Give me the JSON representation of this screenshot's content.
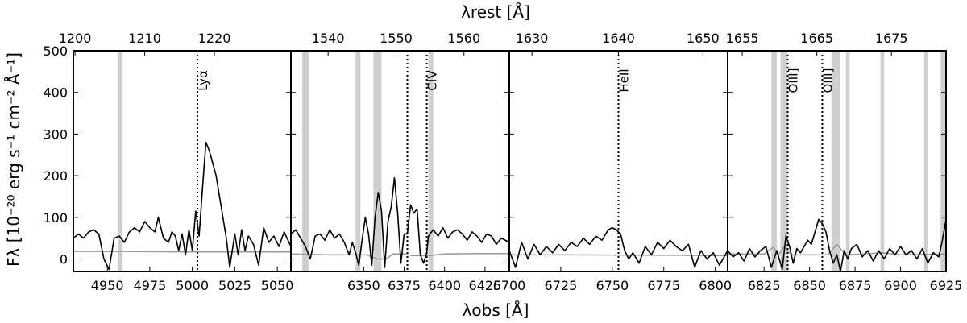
{
  "chart_data": {
    "type": "line",
    "xlabel": "λobs [Å]",
    "top_label": "λrest [Å]",
    "ylabel": "Fλ [10⁻²⁰ erg s⁻¹ cm⁻² Å⁻¹]",
    "ylim": [
      -30,
      500
    ],
    "yticks": [
      0,
      100,
      200,
      300,
      400,
      500
    ],
    "panels": [
      {
        "xlim": [
          4930,
          5058
        ],
        "xticks": [
          4950,
          4975,
          5000,
          5025,
          5050
        ],
        "top_ticks": [
          {
            "label": "1200",
            "obs": 4931
          },
          {
            "label": "1210",
            "obs": 4972
          },
          {
            "label": "1220",
            "obs": 5013
          }
        ],
        "lines": [
          {
            "label": "Lyα",
            "obs": 5003
          }
        ],
        "bands": [
          [
            4956,
            4959
          ]
        ],
        "flux": [
          [
            4930,
            50
          ],
          [
            4933,
            60
          ],
          [
            4936,
            50
          ],
          [
            4939,
            65
          ],
          [
            4942,
            70
          ],
          [
            4945,
            60
          ],
          [
            4948,
            0
          ],
          [
            4951,
            -25
          ],
          [
            4954,
            50
          ],
          [
            4957,
            55
          ],
          [
            4960,
            40
          ],
          [
            4963,
            65
          ],
          [
            4966,
            75
          ],
          [
            4969,
            65
          ],
          [
            4972,
            90
          ],
          [
            4975,
            75
          ],
          [
            4978,
            65
          ],
          [
            4980,
            100
          ],
          [
            4983,
            50
          ],
          [
            4986,
            40
          ],
          [
            4988,
            65
          ],
          [
            4990,
            55
          ],
          [
            4992,
            20
          ],
          [
            4994,
            60
          ],
          [
            4996,
            10
          ],
          [
            4998,
            70
          ],
          [
            5000,
            20
          ],
          [
            5002,
            115
          ],
          [
            5004,
            55
          ],
          [
            5006,
            170
          ],
          [
            5008,
            280
          ],
          [
            5010,
            260
          ],
          [
            5012,
            230
          ],
          [
            5014,
            200
          ],
          [
            5016,
            150
          ],
          [
            5018,
            100
          ],
          [
            5020,
            50
          ],
          [
            5022,
            -20
          ],
          [
            5025,
            60
          ],
          [
            5027,
            10
          ],
          [
            5029,
            70
          ],
          [
            5031,
            20
          ],
          [
            5033,
            55
          ],
          [
            5036,
            35
          ],
          [
            5039,
            -15
          ],
          [
            5042,
            75
          ],
          [
            5045,
            40
          ],
          [
            5048,
            55
          ],
          [
            5051,
            30
          ],
          [
            5054,
            65
          ],
          [
            5058,
            30
          ]
        ],
        "noise": [
          [
            4930,
            18
          ],
          [
            4960,
            18
          ],
          [
            5000,
            17
          ],
          [
            5030,
            17
          ],
          [
            5058,
            17
          ]
        ]
      },
      {
        "xlim": [
          6305,
          6440
        ],
        "xticks": [
          6350,
          6375,
          6400,
          6425
        ],
        "top_ticks": [
          {
            "label": "1540",
            "obs": 6328
          },
          {
            "label": "1550",
            "obs": 6370
          },
          {
            "label": "1560",
            "obs": 6412
          }
        ],
        "lines": [
          {
            "label": "CIV",
            "obs": 6389
          }
        ],
        "extra_lines": [
          6377
        ],
        "bands": [
          [
            6312,
            6316
          ],
          [
            6345,
            6348
          ],
          [
            6356,
            6361
          ],
          [
            6390,
            6393
          ]
        ],
        "flux": [
          [
            6305,
            60
          ],
          [
            6308,
            70
          ],
          [
            6311,
            50
          ],
          [
            6314,
            30
          ],
          [
            6317,
            0
          ],
          [
            6320,
            55
          ],
          [
            6323,
            60
          ],
          [
            6326,
            45
          ],
          [
            6329,
            70
          ],
          [
            6332,
            50
          ],
          [
            6335,
            60
          ],
          [
            6338,
            40
          ],
          [
            6341,
            10
          ],
          [
            6343,
            40
          ],
          [
            6345,
            15
          ],
          [
            6347,
            -15
          ],
          [
            6349,
            45
          ],
          [
            6351,
            100
          ],
          [
            6353,
            60
          ],
          [
            6355,
            -15
          ],
          [
            6357,
            100
          ],
          [
            6359,
            160
          ],
          [
            6361,
            115
          ],
          [
            6363,
            -20
          ],
          [
            6365,
            90
          ],
          [
            6367,
            125
          ],
          [
            6369,
            195
          ],
          [
            6371,
            110
          ],
          [
            6373,
            -10
          ],
          [
            6375,
            60
          ],
          [
            6377,
            60
          ],
          [
            6379,
            130
          ],
          [
            6381,
            110
          ],
          [
            6383,
            120
          ],
          [
            6385,
            10
          ],
          [
            6387,
            -10
          ],
          [
            6389,
            15
          ],
          [
            6390,
            55
          ],
          [
            6393,
            70
          ],
          [
            6396,
            55
          ],
          [
            6399,
            75
          ],
          [
            6402,
            50
          ],
          [
            6405,
            65
          ],
          [
            6408,
            70
          ],
          [
            6411,
            60
          ],
          [
            6414,
            45
          ],
          [
            6417,
            65
          ],
          [
            6420,
            55
          ],
          [
            6423,
            40
          ],
          [
            6426,
            60
          ],
          [
            6429,
            55
          ],
          [
            6432,
            35
          ],
          [
            6435,
            50
          ],
          [
            6440,
            40
          ]
        ],
        "noise": [
          [
            6305,
            12
          ],
          [
            6330,
            10
          ],
          [
            6352,
            10
          ],
          [
            6358,
            0
          ],
          [
            6364,
            0
          ],
          [
            6368,
            12
          ],
          [
            6375,
            12
          ],
          [
            6380,
            8
          ],
          [
            6390,
            8
          ],
          [
            6400,
            12
          ],
          [
            6420,
            13
          ],
          [
            6440,
            13
          ]
        ]
      },
      {
        "xlim": [
          6700,
          6806
        ],
        "xticks": [
          6700,
          6725,
          6750,
          6775,
          6800
        ],
        "top_ticks": [
          {
            "label": "1630",
            "obs": 6711
          },
          {
            "label": "1640",
            "obs": 6753
          },
          {
            "label": "1650",
            "obs": 6794
          }
        ],
        "lines": [
          {
            "label": "HeII",
            "obs": 6753
          }
        ],
        "bands": [],
        "flux": [
          [
            6700,
            20
          ],
          [
            6703,
            -20
          ],
          [
            6706,
            40
          ],
          [
            6709,
            0
          ],
          [
            6712,
            35
          ],
          [
            6715,
            10
          ],
          [
            6718,
            30
          ],
          [
            6721,
            15
          ],
          [
            6724,
            35
          ],
          [
            6727,
            20
          ],
          [
            6730,
            40
          ],
          [
            6733,
            30
          ],
          [
            6736,
            50
          ],
          [
            6739,
            35
          ],
          [
            6742,
            55
          ],
          [
            6745,
            45
          ],
          [
            6748,
            70
          ],
          [
            6750,
            75
          ],
          [
            6752,
            70
          ],
          [
            6754,
            60
          ],
          [
            6756,
            20
          ],
          [
            6758,
            0
          ],
          [
            6760,
            15
          ],
          [
            6763,
            -10
          ],
          [
            6766,
            30
          ],
          [
            6769,
            10
          ],
          [
            6772,
            40
          ],
          [
            6775,
            25
          ],
          [
            6778,
            45
          ],
          [
            6781,
            30
          ],
          [
            6784,
            20
          ],
          [
            6787,
            35
          ],
          [
            6790,
            -20
          ],
          [
            6793,
            20
          ],
          [
            6796,
            0
          ],
          [
            6799,
            15
          ],
          [
            6802,
            -15
          ],
          [
            6806,
            20
          ]
        ],
        "noise": [
          [
            6700,
            10
          ],
          [
            6730,
            10
          ],
          [
            6760,
            9
          ],
          [
            6780,
            9
          ],
          [
            6806,
            8
          ]
        ]
      },
      {
        "xlim": [
          6805,
          6925
        ],
        "xticks": [
          6825,
          6850,
          6875,
          6900,
          6925
        ],
        "top_ticks": [
          {
            "label": "1655",
            "obs": 6813
          },
          {
            "label": "1665",
            "obs": 6854
          },
          {
            "label": "1675",
            "obs": 6895
          }
        ],
        "lines": [
          {
            "label": "OIII]",
            "obs": 6838
          },
          {
            "label": "OIII]",
            "obs": 6857
          }
        ],
        "bands": [
          [
            6829,
            6832
          ],
          [
            6834,
            6838
          ],
          [
            6862,
            6867
          ],
          [
            6870,
            6872
          ],
          [
            6889,
            6891
          ],
          [
            6913,
            6915
          ],
          [
            6922,
            6925
          ]
        ],
        "flux": [
          [
            6805,
            20
          ],
          [
            6808,
            5
          ],
          [
            6811,
            15
          ],
          [
            6814,
            -5
          ],
          [
            6817,
            25
          ],
          [
            6820,
            5
          ],
          [
            6823,
            20
          ],
          [
            6826,
            30
          ],
          [
            6829,
            -20
          ],
          [
            6832,
            20
          ],
          [
            6835,
            -25
          ],
          [
            6837,
            55
          ],
          [
            6839,
            30
          ],
          [
            6841,
            -10
          ],
          [
            6843,
            25
          ],
          [
            6845,
            15
          ],
          [
            6847,
            30
          ],
          [
            6849,
            45
          ],
          [
            6851,
            35
          ],
          [
            6853,
            65
          ],
          [
            6855,
            95
          ],
          [
            6857,
            85
          ],
          [
            6859,
            65
          ],
          [
            6861,
            20
          ],
          [
            6863,
            -10
          ],
          [
            6865,
            10
          ],
          [
            6867,
            -30
          ],
          [
            6869,
            20
          ],
          [
            6871,
            0
          ],
          [
            6873,
            25
          ],
          [
            6876,
            35
          ],
          [
            6879,
            5
          ],
          [
            6882,
            20
          ],
          [
            6885,
            -5
          ],
          [
            6888,
            20
          ],
          [
            6891,
            0
          ],
          [
            6894,
            25
          ],
          [
            6897,
            10
          ],
          [
            6900,
            30
          ],
          [
            6903,
            10
          ],
          [
            6906,
            20
          ],
          [
            6909,
            0
          ],
          [
            6912,
            25
          ],
          [
            6915,
            -10
          ],
          [
            6918,
            15
          ],
          [
            6921,
            5
          ],
          [
            6923,
            45
          ],
          [
            6925,
            95
          ]
        ],
        "noise": [
          [
            6805,
            12
          ],
          [
            6825,
            12
          ],
          [
            6830,
            28
          ],
          [
            6833,
            10
          ],
          [
            6836,
            30
          ],
          [
            6840,
            10
          ],
          [
            6860,
            10
          ],
          [
            6865,
            35
          ],
          [
            6870,
            10
          ],
          [
            6880,
            12
          ],
          [
            6890,
            15
          ],
          [
            6900,
            10
          ],
          [
            6925,
            12
          ]
        ]
      }
    ]
  }
}
